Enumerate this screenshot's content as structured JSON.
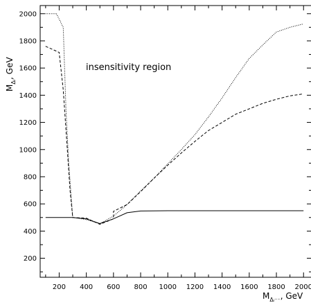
{
  "chart_data": {
    "type": "line",
    "title": "",
    "annotation": "insensitivity region",
    "xlabel": {
      "main": "M",
      "sub": "Δᵢ⁻⁻",
      "unit": ", GeV"
    },
    "ylabel": {
      "main": "M",
      "sub": "Δₗ",
      "unit": ", GeV"
    },
    "xlim": [
      60,
      2060
    ],
    "ylim": [
      60,
      2060
    ],
    "x_ticks": [
      200,
      400,
      600,
      800,
      1000,
      1200,
      1400,
      1600,
      1800,
      2000
    ],
    "y_ticks": [
      200,
      400,
      600,
      800,
      1000,
      1200,
      1400,
      1600,
      1800,
      2000
    ],
    "grid": false,
    "series": [
      {
        "style": "solid",
        "color": "#000000",
        "points": [
          [
            100,
            500
          ],
          [
            300,
            500
          ],
          [
            400,
            490
          ],
          [
            500,
            455
          ],
          [
            600,
            490
          ],
          [
            700,
            535
          ],
          [
            800,
            548
          ],
          [
            1000,
            550
          ],
          [
            1500,
            550
          ],
          [
            2000,
            550
          ]
        ]
      },
      {
        "style": "dashed",
        "color": "#000000",
        "points": [
          [
            100,
            1760
          ],
          [
            200,
            1715
          ],
          [
            230,
            1440
          ],
          [
            260,
            1000
          ],
          [
            280,
            700
          ],
          [
            300,
            500
          ],
          [
            400,
            495
          ],
          [
            500,
            450
          ],
          [
            600,
            490
          ],
          [
            600,
            545
          ],
          [
            700,
            595
          ],
          [
            800,
            690
          ],
          [
            900,
            790
          ],
          [
            1000,
            885
          ],
          [
            1100,
            975
          ],
          [
            1200,
            1060
          ],
          [
            1300,
            1140
          ],
          [
            1400,
            1200
          ],
          [
            1500,
            1260
          ],
          [
            1600,
            1300
          ],
          [
            1700,
            1340
          ],
          [
            1800,
            1370
          ],
          [
            1900,
            1395
          ],
          [
            2000,
            1410
          ]
        ]
      },
      {
        "style": "dotted",
        "color": "#000000",
        "points": [
          [
            100,
            2000
          ],
          [
            180,
            2000
          ],
          [
            230,
            1900
          ],
          [
            250,
            1300
          ],
          [
            270,
            900
          ],
          [
            300,
            500
          ],
          [
            400,
            485
          ],
          [
            500,
            455
          ],
          [
            600,
            510
          ],
          [
            700,
            595
          ],
          [
            800,
            695
          ],
          [
            900,
            790
          ],
          [
            1000,
            895
          ],
          [
            1100,
            1000
          ],
          [
            1200,
            1110
          ],
          [
            1300,
            1240
          ],
          [
            1400,
            1380
          ],
          [
            1500,
            1530
          ],
          [
            1600,
            1670
          ],
          [
            1700,
            1770
          ],
          [
            1800,
            1865
          ],
          [
            1900,
            1900
          ],
          [
            2000,
            1925
          ]
        ]
      }
    ]
  }
}
